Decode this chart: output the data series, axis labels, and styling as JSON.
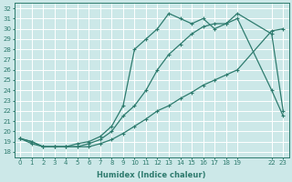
{
  "xlabel": "Humidex (Indice chaleur)",
  "bg_color": "#cce8e8",
  "grid_color": "#ffffff",
  "line_color": "#2e7b6e",
  "xlim": [
    -0.5,
    23.5
  ],
  "ylim": [
    17.5,
    32.5
  ],
  "yticks": [
    18,
    19,
    20,
    21,
    22,
    23,
    24,
    25,
    26,
    27,
    28,
    29,
    30,
    31,
    32
  ],
  "xticks": [
    0,
    1,
    2,
    3,
    4,
    5,
    6,
    7,
    8,
    9,
    10,
    11,
    12,
    13,
    14,
    15,
    16,
    17,
    18,
    19,
    22,
    23
  ],
  "line1_x": [
    0,
    1,
    2,
    3,
    4,
    5,
    6,
    7,
    8,
    9,
    10,
    11,
    12,
    13,
    14,
    15,
    16,
    17,
    18,
    19,
    22,
    23
  ],
  "line1_y": [
    19.3,
    19.0,
    18.5,
    18.5,
    18.5,
    18.5,
    18.5,
    18.8,
    19.2,
    19.8,
    20.5,
    21.2,
    22.0,
    22.5,
    23.2,
    23.8,
    24.5,
    25.0,
    25.5,
    26.0,
    29.8,
    30.0
  ],
  "line2_x": [
    0,
    1,
    2,
    3,
    4,
    5,
    6,
    7,
    8,
    9,
    10,
    11,
    12,
    13,
    14,
    15,
    16,
    17,
    18,
    19,
    22,
    23
  ],
  "line2_y": [
    19.3,
    18.8,
    18.5,
    18.5,
    18.5,
    18.8,
    19.0,
    19.5,
    20.5,
    22.5,
    28.0,
    29.0,
    30.0,
    31.5,
    31.0,
    30.5,
    31.0,
    30.0,
    30.5,
    31.5,
    29.5,
    22.0
  ],
  "line3_x": [
    0,
    1,
    2,
    3,
    4,
    5,
    6,
    7,
    8,
    9,
    10,
    11,
    12,
    13,
    14,
    15,
    16,
    17,
    18,
    19,
    22,
    23
  ],
  "line3_y": [
    19.3,
    19.0,
    18.5,
    18.5,
    18.5,
    18.5,
    18.8,
    19.2,
    20.0,
    21.5,
    22.5,
    24.0,
    26.0,
    27.5,
    28.5,
    29.5,
    30.2,
    30.5,
    30.5,
    31.0,
    24.0,
    21.5
  ]
}
